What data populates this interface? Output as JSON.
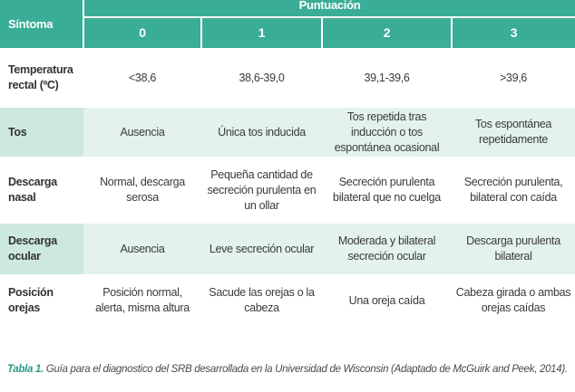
{
  "header": {
    "symptom_label": "Síntoma",
    "group_label": "Puntuación",
    "scores": [
      "0",
      "1",
      "2",
      "3"
    ]
  },
  "rows": [
    {
      "symptom": "Temperatura rectal (ºC)",
      "values": [
        "<38,6",
        "38,6-39,0",
        "39,1-39,6",
        ">39,6"
      ]
    },
    {
      "symptom": "Tos",
      "values": [
        "Ausencia",
        "Única tos inducida",
        "Tos repetida tras inducción o tos espontánea ocasional",
        "Tos espontánea repetidamente"
      ]
    },
    {
      "symptom": "Descarga nasal",
      "values": [
        "Normal, descarga serosa",
        "Pequeña cantidad de secreción purulenta en un ollar",
        "Secreción purulenta bilateral que no cuelga",
        "Secreción purulenta, bilateral con caída"
      ]
    },
    {
      "symptom": "Descarga ocular",
      "values": [
        "Ausencia",
        "Leve secreción ocular",
        "Moderada y bilateral secreción ocular",
        "Descarga purulenta bilateral"
      ]
    },
    {
      "symptom": "Posición orejas",
      "values": [
        "Posición normal, alerta, misma altura",
        "Sacude las orejas o la cabeza",
        "Una oreja caída",
        "Cabeza girada o ambas orejas caídas"
      ]
    }
  ],
  "caption": {
    "label": "Tabla 1.",
    "text": " Guía para el diagnostico del SRB desarrollada en la Universidad de Wisconsin (Adaptado de McGuirk and Peek, 2014)."
  },
  "colors": {
    "header_green": "#3aad96",
    "tint_row": "#e3f2ee",
    "caption_label": "#2d9a82"
  }
}
